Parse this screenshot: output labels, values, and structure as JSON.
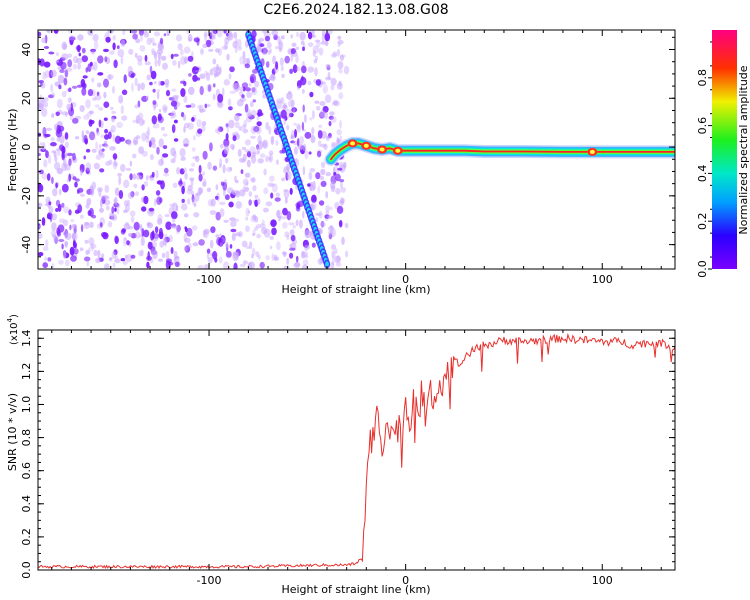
{
  "title": "C2E6.2024.182.13.08.G08",
  "colors": {
    "background": "#ffffff",
    "snr_line": "#e8302c",
    "noise": "#7a1bff",
    "noise_light": "#c9a6ff"
  },
  "chart_data": [
    {
      "type": "heatmap",
      "title": "C2E6.2024.182.13.08.G08",
      "xlabel": "Height of straight line (km)",
      "ylabel": "Frequency (Hz)",
      "xlim": [
        -187,
        137
      ],
      "ylim": [
        -50,
        48
      ],
      "x_ticks": [
        -100,
        0,
        100
      ],
      "x_tick_labels": [
        "-100",
        "0",
        "100"
      ],
      "y_ticks": [
        -40,
        -20,
        0,
        20,
        40
      ],
      "y_tick_labels": [
        "-40",
        "-20",
        "0",
        "20",
        "40"
      ],
      "grid": false,
      "colorbar": {
        "label": "Normalized spectral amplitude",
        "range": [
          0,
          1
        ],
        "ticks": [
          0.0,
          0.2,
          0.4,
          0.6,
          0.8
        ],
        "tick_labels": [
          "0.0",
          "0.2",
          "0.4",
          "0.6",
          "0.8"
        ],
        "colormap": "rainbow"
      },
      "features": {
        "noise_region_x": [
          -187,
          -33
        ],
        "diagonal_streak": {
          "x": [
            -80,
            -40
          ],
          "y": [
            46,
            -48
          ]
        },
        "carrier_trace": {
          "x": [
            -38,
            -36,
            -33,
            -30,
            -27,
            -24,
            -20,
            -16,
            -12,
            -8,
            -4,
            0,
            5,
            10,
            15,
            20,
            30,
            40,
            60,
            80,
            100,
            120,
            137
          ],
          "y": [
            -5,
            -3,
            -1,
            0.5,
            1.5,
            1.5,
            0.5,
            -0.5,
            -1,
            -0.5,
            -1.5,
            -1.5,
            -1.5,
            -1.5,
            -1.5,
            -1.5,
            -1.5,
            -1.8,
            -1.8,
            -2.0,
            -2.0,
            -2.0,
            -2.0
          ]
        }
      }
    },
    {
      "type": "line",
      "xlabel": "Height of straight line (km)",
      "ylabel": "SNR (10 * v/v)",
      "y_multiplier_label": "(x10",
      "y_multiplier_exp": "4",
      "xlim": [
        -187,
        137
      ],
      "ylim": [
        0.0,
        1.45
      ],
      "x_ticks": [
        -100,
        0,
        100
      ],
      "x_tick_labels": [
        "-100",
        "0",
        "100"
      ],
      "y_ticks": [
        0.0,
        0.2,
        0.4,
        0.6,
        0.8,
        1.0,
        1.2,
        1.4
      ],
      "y_tick_labels": [
        "0.0",
        "0.2",
        "0.4",
        "0.6",
        "0.8",
        "1.0",
        "1.2",
        "1.4"
      ],
      "grid": false,
      "series": [
        {
          "x": [
            -187,
            -160,
            -140,
            -120,
            -100,
            -80,
            -60,
            -40,
            -30,
            -25,
            -22,
            -20,
            -18,
            -16,
            -14,
            -12,
            -10,
            -8,
            -6,
            -4,
            -2,
            0,
            2,
            4,
            6,
            8,
            10,
            12,
            14,
            16,
            18,
            20,
            22,
            25,
            28,
            31,
            35,
            40,
            45,
            50,
            60,
            70,
            80,
            90,
            100,
            110,
            115,
            120,
            125,
            130,
            137
          ],
          "values": [
            0.02,
            0.02,
            0.02,
            0.02,
            0.02,
            0.02,
            0.025,
            0.03,
            0.03,
            0.04,
            0.08,
            0.48,
            0.78,
            0.82,
            0.98,
            0.72,
            0.94,
            0.8,
            0.88,
            0.84,
            0.9,
            1.0,
            0.86,
            1.1,
            0.92,
            1.06,
            0.95,
            1.15,
            1.02,
            1.13,
            1.12,
            1.18,
            1.22,
            1.26,
            1.24,
            1.3,
            1.33,
            1.36,
            1.37,
            1.39,
            1.38,
            1.39,
            1.4,
            1.39,
            1.38,
            1.38,
            1.36,
            1.37,
            1.37,
            1.37,
            1.35
          ]
        }
      ]
    }
  ]
}
